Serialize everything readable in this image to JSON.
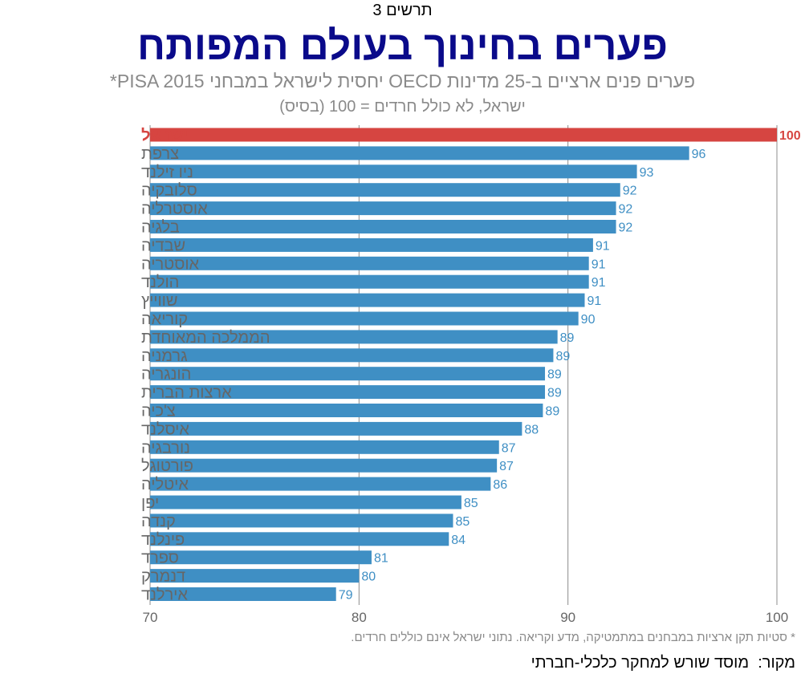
{
  "figure_label": "תרשים 3",
  "footnote": "* סטיות תקן ארציות במבחנים במתמטיקה, מדע וקריאה. נתוני ישראל אינם כוללים חרדים.",
  "source": "מקור:  מוסד שורש למחקר כלכלי-חברתי",
  "colors": {
    "highlight": "#d64541",
    "bar": "#3f8fc4",
    "label_gray": "#666666",
    "title": "#0a0a8a"
  },
  "chart_data": {
    "type": "bar",
    "orientation": "horizontal",
    "title": "פערים בחינוך בעולם המפותח",
    "subtitle": "פערים פנים ארציים ב-25 מדינות OECD יחסית לישראל במבחני PISA 2015*",
    "subtitle2": "ישראל, לא כולל חרדים = 100 (בסיס)",
    "categories": [
      "ישראל",
      "צרפת",
      "ניו זילנד",
      "סלובקיה",
      "אוסטרליה",
      "בלגיה",
      "שבדיה",
      "אוסטריה",
      "הולנד",
      "שווייץ",
      "קוריאה",
      "הממלכה המאוחדת",
      "גרמניה",
      "הונגריה",
      "ארצות הברית",
      "צ'כיה",
      "איסלנד",
      "נורבגיה",
      "פורטוגל",
      "איטליה",
      "יפן",
      "קנדה",
      "פינלנד",
      "ספרד",
      "דנמרק",
      "אירלנד"
    ],
    "values": [
      100,
      95.8,
      93.3,
      92.5,
      92.3,
      92.3,
      91.2,
      91.0,
      91.0,
      90.8,
      90.5,
      89.5,
      89.3,
      88.9,
      88.9,
      88.8,
      87.8,
      86.7,
      86.6,
      86.3,
      84.9,
      84.5,
      84.3,
      80.6,
      80.0,
      78.9
    ],
    "data_labels": [
      "100",
      "96",
      "93",
      "92",
      "92",
      "92",
      "91",
      "91",
      "91",
      "91",
      "90",
      "89",
      "89",
      "89",
      "89",
      "89",
      "88",
      "87",
      "87",
      "86",
      "85",
      "85",
      "84",
      "81",
      "80",
      "79"
    ],
    "highlight": "ישראל",
    "xlim": [
      70,
      100
    ],
    "xticks": [
      "70",
      "80",
      "90",
      "100"
    ],
    "xtick_values": [
      70,
      80,
      90,
      100
    ],
    "grid": true,
    "xlabel": "",
    "ylabel": ""
  }
}
